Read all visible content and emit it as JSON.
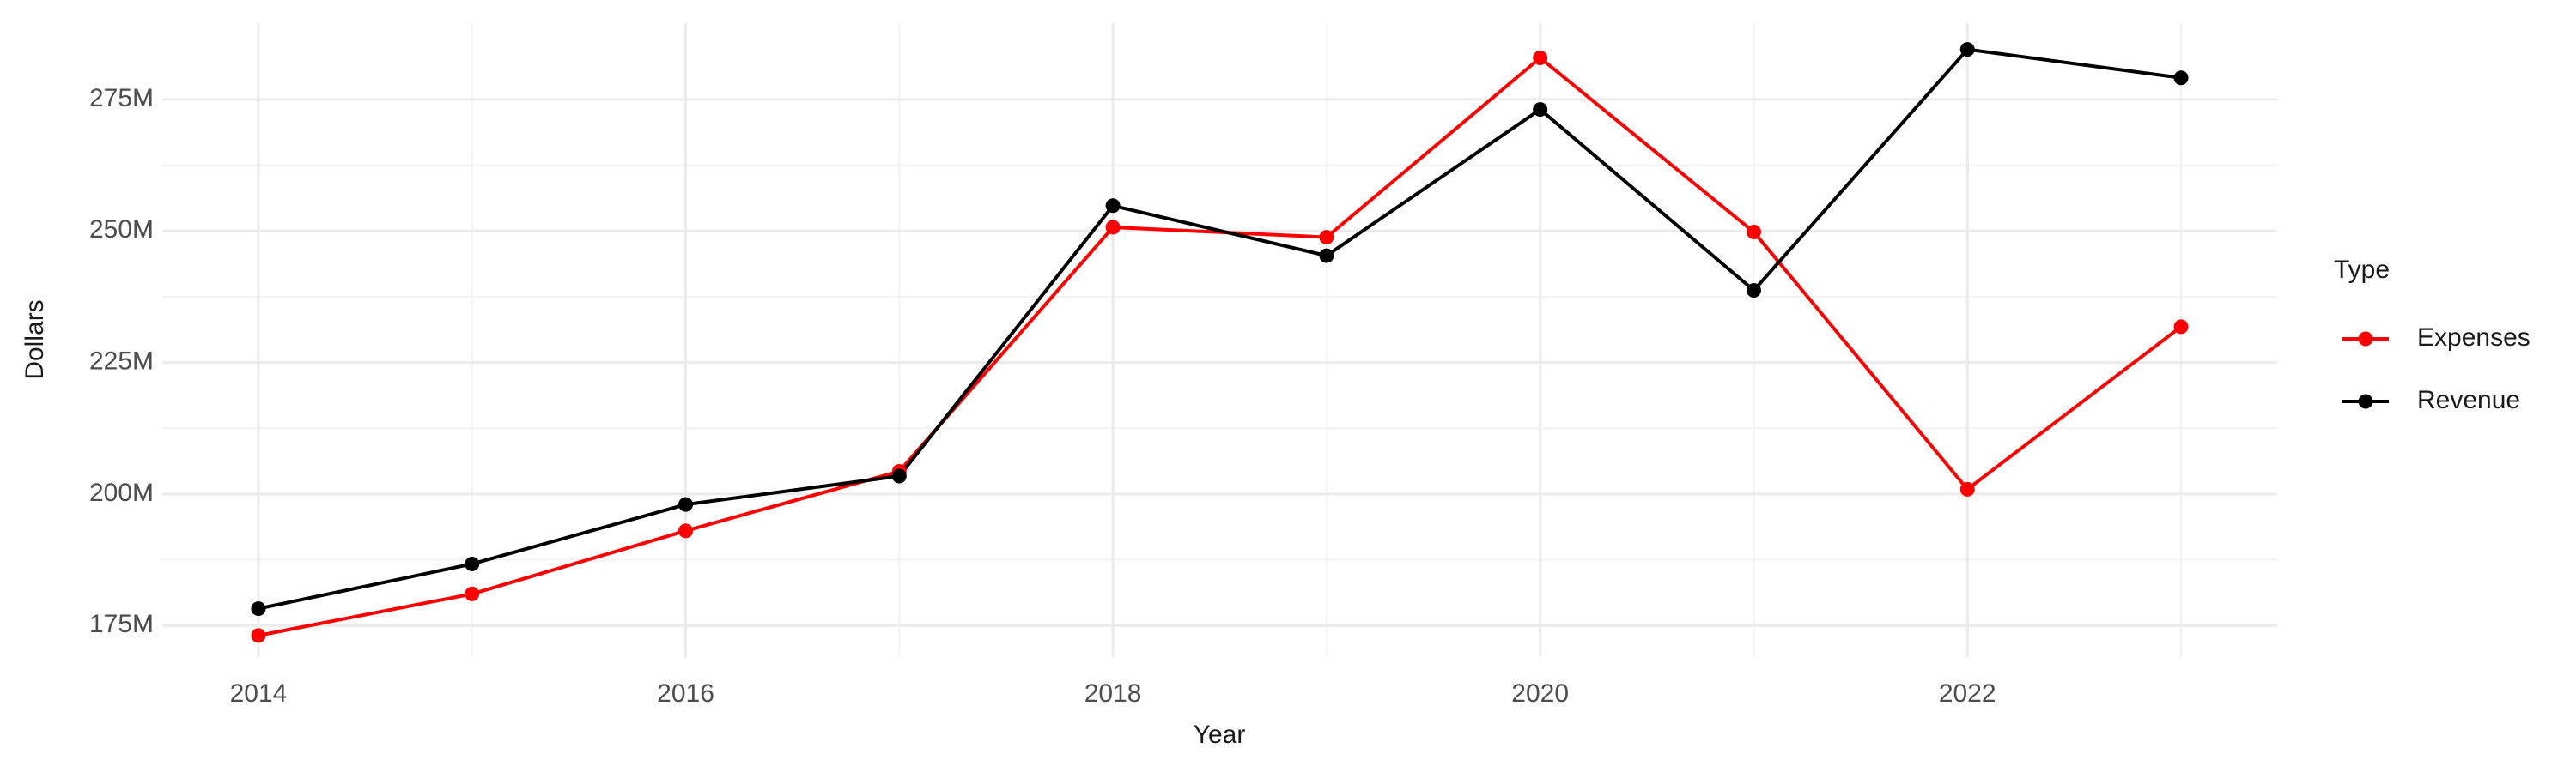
{
  "chart_data": {
    "type": "line",
    "x_label": "Year",
    "y_label": "Dollars",
    "x": [
      2014,
      2015,
      2016,
      2017,
      2018,
      2019,
      2020,
      2021,
      2022,
      2023
    ],
    "series": [
      {
        "name": "Expenses",
        "color": "#ff0000",
        "values": [
          173100000,
          181000000,
          193000000,
          204300000,
          250700000,
          248800000,
          282900000,
          249800000,
          200900000,
          231800000
        ]
      },
      {
        "name": "Revenue",
        "color": "#000000",
        "values": [
          178200000,
          186700000,
          198000000,
          203400000,
          254800000,
          245300000,
          273100000,
          238700000,
          284500000,
          279100000
        ]
      }
    ],
    "xlim": [
      2013.55,
      2023.45
    ],
    "xticks": [
      2014,
      2016,
      2018,
      2020,
      2022
    ],
    "ylim": [
      169000000,
      289500000
    ],
    "yticks": [
      {
        "value": 175000000,
        "label": "175M"
      },
      {
        "value": 200000000,
        "label": "200M"
      },
      {
        "value": 225000000,
        "label": "225M"
      },
      {
        "value": 250000000,
        "label": "250M"
      },
      {
        "value": 275000000,
        "label": "275M"
      }
    ],
    "grid": true,
    "legend_title": "Type",
    "legend_position": "right"
  }
}
